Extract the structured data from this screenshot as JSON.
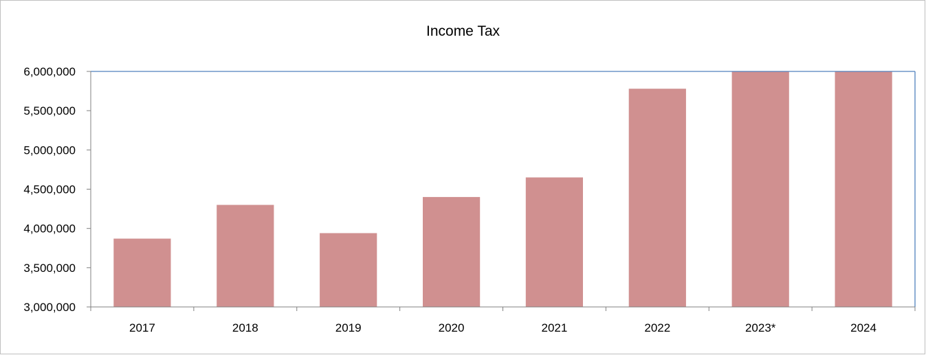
{
  "chart_data": {
    "type": "bar",
    "title": "Income Tax",
    "xlabel": "",
    "ylabel": "",
    "categories": [
      "2017",
      "2018",
      "2019",
      "2020",
      "2021",
      "2022",
      "2023*",
      "2024"
    ],
    "values": [
      3870000,
      4300000,
      3940000,
      4400000,
      4650000,
      5780000,
      6000000,
      6000000
    ],
    "ylim": [
      3000000,
      6000000
    ],
    "yticks": [
      3000000,
      3500000,
      4000000,
      4500000,
      5000000,
      5500000,
      6000000
    ],
    "ytick_labels": [
      "3,000,000",
      "3,500,000",
      "4,000,000",
      "4,500,000",
      "5,000,000",
      "5,500,000",
      "6,000,000"
    ],
    "grid": false,
    "legend": "none",
    "colors": {
      "bar": "#d09090",
      "plot_border": "#4f81bd",
      "axis": "#808080",
      "frame": "#bfbfbf"
    }
  }
}
